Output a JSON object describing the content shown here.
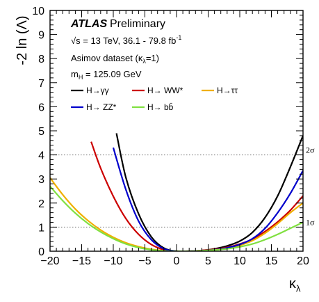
{
  "chart_data": {
    "type": "line",
    "experiment": "ATLAS",
    "status": "Preliminary",
    "annotations": {
      "energy_lumi": "√s = 13 TeV, 36.1 - 79.8 fb",
      "energy_lumi_sup": "-1",
      "dataset": "Asimov dataset (κ",
      "dataset_sub": "λ",
      "dataset_tail": "=1)",
      "mass": "m",
      "mass_sub": "H",
      "mass_tail": " = 125.09 GeV"
    },
    "xlabel": "κ",
    "xlabel_sub": "λ",
    "ylabel": "-2 ln (Λ)",
    "xlim": [
      -20,
      20
    ],
    "ylim": [
      0,
      10
    ],
    "x_ticks": [
      -20,
      -15,
      -10,
      -5,
      0,
      5,
      10,
      15,
      20
    ],
    "y_ticks": [
      0,
      1,
      2,
      3,
      4,
      5,
      6,
      7,
      8,
      9,
      10
    ],
    "sigma_lines": [
      {
        "label": "1σ",
        "value": 1
      },
      {
        "label": "2σ",
        "value": 4
      }
    ],
    "legend_placement": "top-left",
    "series": [
      {
        "name": "H→γγ",
        "color": "#000000",
        "x": [
          -9.5,
          -8,
          -6,
          -4,
          -2,
          0,
          2,
          4,
          6,
          8,
          10,
          12,
          14,
          16,
          18,
          20
        ],
        "y": [
          4.9,
          3.05,
          1.55,
          0.6,
          0.13,
          0.0,
          0.0,
          0.03,
          0.1,
          0.22,
          0.42,
          0.78,
          1.4,
          2.3,
          3.5,
          4.8
        ]
      },
      {
        "name": "H→ WW*",
        "color": "#cc0000",
        "x": [
          -13.5,
          -12,
          -10,
          -8,
          -6,
          -4,
          -2,
          0,
          2,
          4,
          6,
          8,
          10,
          12,
          14,
          16,
          18,
          20
        ],
        "y": [
          4.55,
          3.45,
          2.28,
          1.35,
          0.7,
          0.28,
          0.06,
          0.0,
          0.0,
          0.03,
          0.08,
          0.16,
          0.3,
          0.5,
          0.82,
          1.22,
          1.7,
          2.3
        ]
      },
      {
        "name": "H→ττ",
        "color": "#f0b000",
        "x": [
          -20,
          -18,
          -16,
          -14,
          -12,
          -10,
          -8,
          -6,
          -4,
          -2,
          0,
          2,
          4,
          6,
          8,
          10,
          12,
          14,
          16,
          18,
          20
        ],
        "y": [
          3.05,
          2.35,
          1.75,
          1.27,
          0.88,
          0.58,
          0.35,
          0.19,
          0.08,
          0.02,
          0.0,
          0.0,
          0.02,
          0.05,
          0.12,
          0.24,
          0.44,
          0.75,
          1.15,
          1.6,
          2.0
        ]
      },
      {
        "name": "H→ ZZ*",
        "color": "#0000cc",
        "x": [
          -10,
          -8,
          -6,
          -4,
          -2,
          0,
          2,
          4,
          6,
          8,
          10,
          12,
          14,
          16,
          18,
          20
        ],
        "y": [
          4.3,
          2.55,
          1.25,
          0.48,
          0.1,
          0.0,
          0.0,
          0.02,
          0.06,
          0.14,
          0.28,
          0.52,
          0.95,
          1.6,
          2.4,
          3.35
        ]
      },
      {
        "name": "H→ bb̄",
        "color": "#80e040",
        "x": [
          -20,
          -18,
          -16,
          -14,
          -12,
          -10,
          -8,
          -6,
          -4,
          -2,
          0,
          2,
          4,
          6,
          8,
          10,
          12,
          14,
          16,
          18,
          20
        ],
        "y": [
          2.7,
          2.1,
          1.58,
          1.15,
          0.8,
          0.52,
          0.3,
          0.15,
          0.06,
          0.01,
          0.0,
          0.0,
          0.02,
          0.05,
          0.1,
          0.18,
          0.3,
          0.48,
          0.7,
          0.95,
          1.2
        ]
      }
    ]
  }
}
